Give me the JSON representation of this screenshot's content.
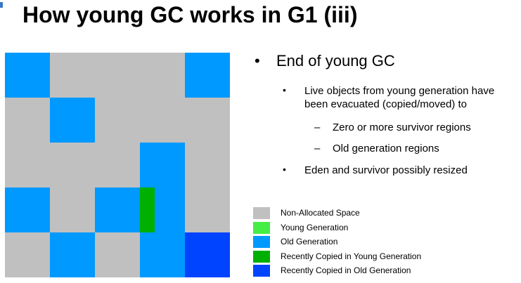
{
  "title": "How young GC works in G1 (iii)",
  "colors": {
    "non_allocated": "#c0c0c0",
    "young": "#44ee44",
    "old": "#0099ff",
    "recently_copied_young": "#00b000",
    "recently_copied_old": "#0044ff"
  },
  "heap_grid": {
    "rows": 5,
    "cols": 5,
    "cells": [
      [
        "old",
        "non_allocated",
        "non_allocated",
        "non_allocated",
        "old"
      ],
      [
        "non_allocated",
        "old",
        "non_allocated",
        "non_allocated",
        "non_allocated"
      ],
      [
        "non_allocated",
        "non_allocated",
        "non_allocated",
        "old",
        "non_allocated"
      ],
      [
        "old",
        "non_allocated",
        "old",
        "old_with_young_copy",
        "non_allocated"
      ],
      [
        "non_allocated",
        "old",
        "non_allocated",
        "old",
        "recently_copied_old"
      ]
    ]
  },
  "bullets": {
    "main": "End of young GC",
    "sub1": {
      "line1": "Live objects from young generation have",
      "line2": "been evacuated (copied/moved) to"
    },
    "dash1": "Zero or more survivor regions",
    "dash2": "Old generation regions",
    "sub2": "Eden and survivor possibly resized",
    "dot_symbol": "•",
    "dash_symbol": "–"
  },
  "legend": [
    {
      "label": "Non-Allocated Space",
      "color_key": "non_allocated"
    },
    {
      "label": "Young Generation",
      "color_key": "young"
    },
    {
      "label": "Old Generation",
      "color_key": "old"
    },
    {
      "label": "Recently Copied in Young Generation",
      "color_key": "recently_copied_young"
    },
    {
      "label": "Recently Copied in Old Generation",
      "color_key": "recently_copied_old"
    }
  ]
}
